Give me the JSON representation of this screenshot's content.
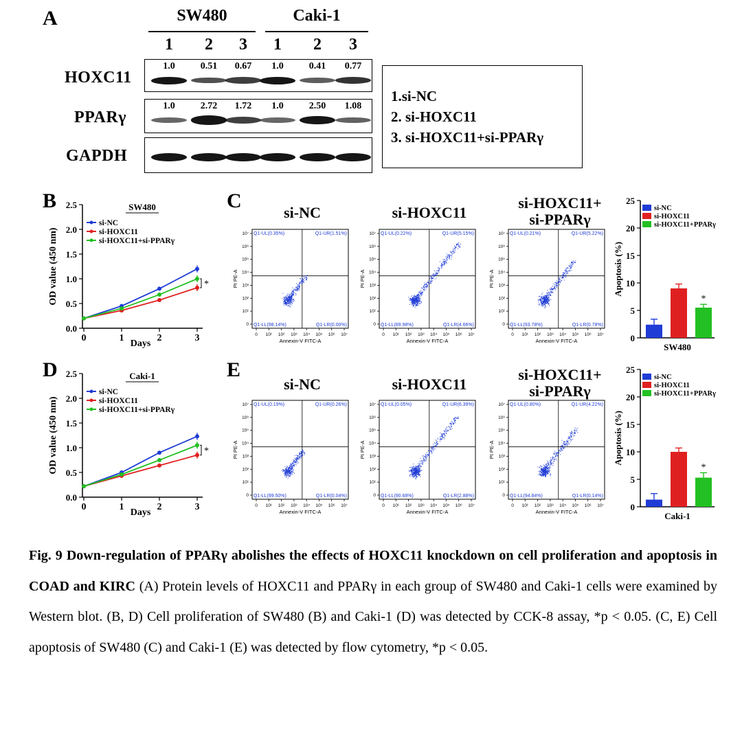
{
  "panels": {
    "a": "A",
    "b": "B",
    "c": "C",
    "d": "D",
    "e": "E"
  },
  "western": {
    "cell_lines": [
      "SW480",
      "Caki-1"
    ],
    "lanes": [
      "1",
      "2",
      "3",
      "1",
      "2",
      "3"
    ],
    "rows": [
      {
        "label": "HOXC11",
        "quant": [
          "1.0",
          "0.51",
          "0.67",
          "1.0",
          "0.41",
          "0.77"
        ],
        "band_intensity": [
          1.0,
          0.51,
          0.67,
          1.0,
          0.41,
          0.77
        ]
      },
      {
        "label": "PPARγ",
        "quant": [
          "1.0",
          "2.72",
          "1.72",
          "1.0",
          "2.50",
          "1.08"
        ],
        "band_intensity": [
          1.0,
          2.72,
          1.72,
          1.0,
          2.5,
          1.08
        ]
      },
      {
        "label": "GAPDH",
        "band_intensity": [
          1.0,
          1.0,
          1.0,
          1.0,
          1.0,
          1.0
        ]
      }
    ],
    "legend": [
      "1.si-NC",
      "2. si-HOXC11",
      "3. si-HOXC11+si-PPARγ"
    ]
  },
  "flow_columns": [
    "si-NC",
    "si-HOXC11",
    "si-HOXC11+\nsi-PPARγ"
  ],
  "chart_data": [
    {
      "id": "B",
      "type": "line",
      "title": "SW480",
      "xlabel": "Days",
      "ylabel": "OD value (450 nm)",
      "x": [
        0,
        1,
        2,
        3
      ],
      "xticks": [
        "0",
        "1",
        "2",
        "3"
      ],
      "ylim": [
        0,
        2.5
      ],
      "yticks": [
        "0.0",
        "0.5",
        "1.0",
        "1.5",
        "2.0",
        "2.5"
      ],
      "series": [
        {
          "name": "si-NC",
          "color": "#1f3cd6",
          "values": [
            0.2,
            0.45,
            0.8,
            1.2
          ]
        },
        {
          "name": "si-HOXC11",
          "color": "#e02020",
          "values": [
            0.2,
            0.36,
            0.57,
            0.82
          ]
        },
        {
          "name": "si-HOXC11+si-PPARγ",
          "color": "#22c022",
          "values": [
            0.2,
            0.4,
            0.68,
            1.0
          ]
        }
      ],
      "annotation": "*"
    },
    {
      "id": "D",
      "type": "line",
      "title": "Caki-1",
      "xlabel": "Days",
      "ylabel": "OD value (450 nm)",
      "x": [
        0,
        1,
        2,
        3
      ],
      "xticks": [
        "0",
        "1",
        "2",
        "3"
      ],
      "ylim": [
        0,
        2.5
      ],
      "yticks": [
        "0.0",
        "0.5",
        "1.0",
        "1.5",
        "2.0",
        "2.5"
      ],
      "series": [
        {
          "name": "si-NC",
          "color": "#1f3cd6",
          "values": [
            0.22,
            0.5,
            0.9,
            1.23
          ]
        },
        {
          "name": "si-HOXC11",
          "color": "#e02020",
          "values": [
            0.22,
            0.43,
            0.64,
            0.85
          ]
        },
        {
          "name": "si-HOXC11+si-PPARγ",
          "color": "#22c022",
          "values": [
            0.22,
            0.46,
            0.75,
            1.05
          ]
        }
      ],
      "annotation": "*"
    },
    {
      "id": "C-bar",
      "type": "bar",
      "xlabel": "SW480",
      "ylabel": "Apoptosis (%)",
      "categories": [
        "si-NC",
        "si-HOXC11",
        "si-HOXC11+PPARγ"
      ],
      "colors": [
        "#1f3cd6",
        "#e02020",
        "#22c022"
      ],
      "values": [
        2.4,
        9.0,
        5.5
      ],
      "errors": [
        1.0,
        0.8,
        0.6
      ],
      "ylim": [
        0,
        25
      ],
      "yticks": [
        "0",
        "5",
        "10",
        "15",
        "20",
        "25"
      ],
      "annotation": "*"
    },
    {
      "id": "E-bar",
      "type": "bar",
      "xlabel": "Caki-1",
      "ylabel": "Apoptosis (%)",
      "categories": [
        "si-NC",
        "si-HOXC11",
        "si-HOXC11+PPARγ"
      ],
      "colors": [
        "#1f3cd6",
        "#e02020",
        "#22c022"
      ],
      "values": [
        1.3,
        10.0,
        5.3
      ],
      "errors": [
        1.1,
        0.7,
        0.9
      ],
      "ylim": [
        0,
        25
      ],
      "yticks": [
        "0",
        "5",
        "10",
        "15",
        "20",
        "25"
      ],
      "annotation": "*"
    },
    {
      "id": "C1",
      "type": "scatter",
      "xlabel": "Annexin-V FITC-A",
      "ylabel": "PI PE-A",
      "quadrants": [
        "Q1-UL(0.35%)",
        "Q1-UR(1.51%)",
        "Q1-LL(98.14%)",
        "Q1-LR(0.00%)"
      ],
      "density": 0.35
    },
    {
      "id": "C2",
      "type": "scatter",
      "xlabel": "Annexin-V FITC-A",
      "ylabel": "PI PE-A",
      "quadrants": [
        "Q1-UL(0.22%)",
        "Q1-UR(5.15%)",
        "Q1-LL(89.98%)",
        "Q1-LR(4.66%)"
      ],
      "density": 0.9
    },
    {
      "id": "C3",
      "type": "scatter",
      "xlabel": "Annexin-V FITC-A",
      "ylabel": "PI PE-A",
      "quadrants": [
        "Q1-UL(0.21%)",
        "Q1-UR(5.22%)",
        "Q1-LL(93.78%)",
        "Q1-LR(0.78%)"
      ],
      "density": 0.6
    },
    {
      "id": "E1",
      "type": "scatter",
      "xlabel": "Annexin-V FITC-A",
      "ylabel": "PI PE-A",
      "quadrants": [
        "Q1-UL(0.19%)",
        "Q1-UR(0.26%)",
        "Q1-LL(99.50%)",
        "Q1-LR(0.04%)"
      ],
      "density": 0.3
    },
    {
      "id": "E2",
      "type": "scatter",
      "xlabel": "Annexin-V FITC-A",
      "ylabel": "PI PE-A",
      "quadrants": [
        "Q1-UL(0.05%)",
        "Q1-UR(6.39%)",
        "Q1-LL(90.68%)",
        "Q1-LR(2.88%)"
      ],
      "density": 0.85
    },
    {
      "id": "E3",
      "type": "scatter",
      "xlabel": "Annexin-V FITC-A",
      "ylabel": "PI PE-A",
      "quadrants": [
        "Q1-UL(0.80%)",
        "Q1-UR(4.22%)",
        "Q1-LL(94.84%)",
        "Q1-LR(0.14%)"
      ],
      "density": 0.65
    }
  ],
  "caption": {
    "title": "Fig. 9 Down-regulation of PPARγ abolishes the effects of HOXC11 knockdown on cell proliferation and apoptosis in COAD and KIRC",
    "body": " (A) Protein levels of HOXC11 and PPARγ in each group of SW480 and Caki-1 cells were examined by Western blot. (B, D) Cell proliferation of SW480 (B) and Caki-1 (D) was detected by CCK-8 assay, *p < 0.05. (C, E) Cell apoptosis of SW480 (C) and Caki-1 (E) was detected by flow cytometry, *p < 0.05."
  }
}
